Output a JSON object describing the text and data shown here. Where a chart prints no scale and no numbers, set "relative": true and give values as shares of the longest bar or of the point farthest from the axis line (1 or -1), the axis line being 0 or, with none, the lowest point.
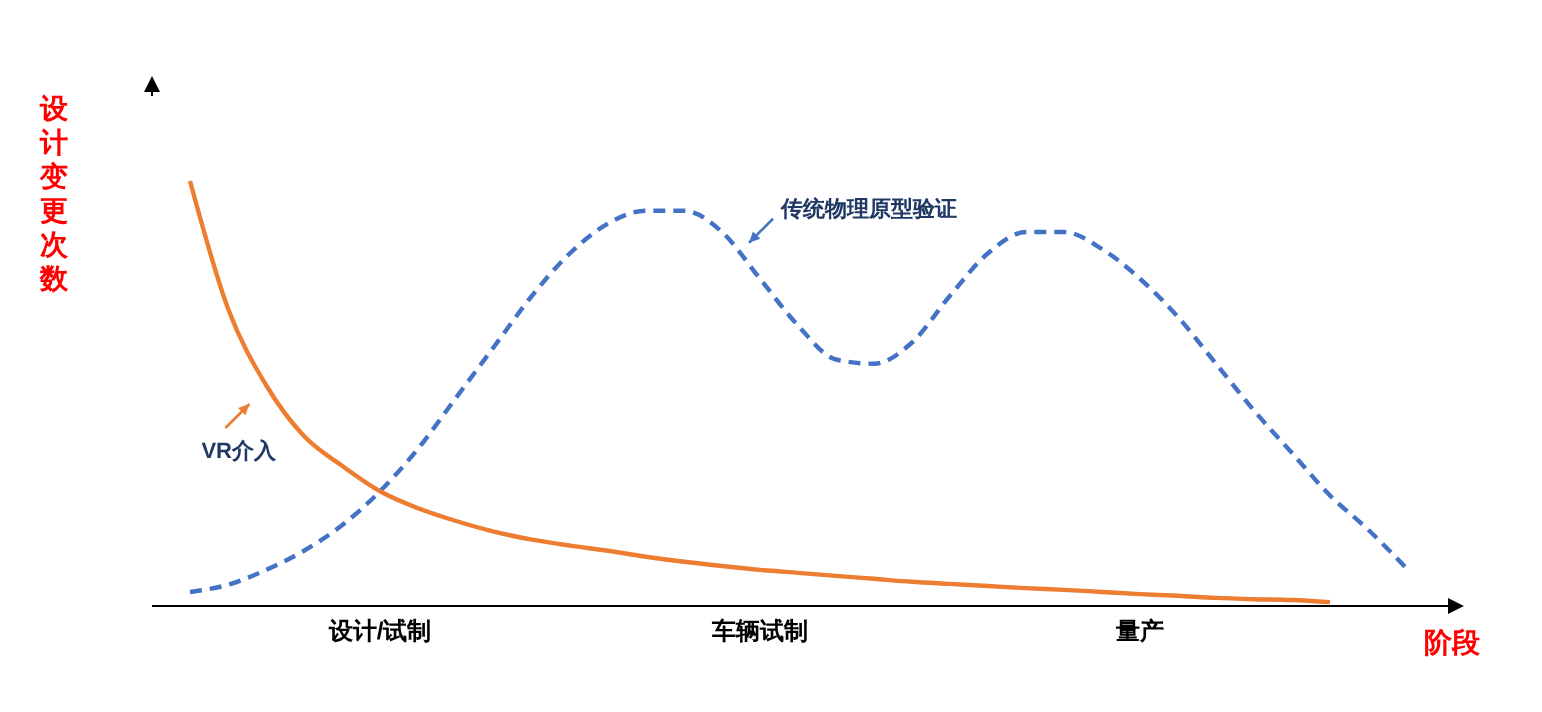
{
  "chart_data": {
    "type": "line",
    "relative": true,
    "xlabel": "阶段",
    "ylabel": "设计变更次数",
    "categories": [
      null,
      null,
      null,
      null,
      null,
      null,
      "设计/试制",
      null,
      null,
      null,
      null,
      null,
      null,
      null,
      null,
      null,
      "车辆试制",
      null,
      null,
      null,
      null,
      null,
      null,
      null,
      null,
      null,
      "量产",
      null,
      null,
      null,
      null,
      null,
      null,
      null,
      null
    ],
    "series": [
      {
        "name": "传统物理原型验证",
        "color": "#4472c4",
        "line_style": "dashed",
        "values": [
          null,
          0.033,
          0.05,
          0.085,
          0.13,
          0.19,
          0.27,
          0.37,
          0.49,
          0.61,
          0.73,
          0.83,
          0.9,
          0.93,
          0.93,
          0.88,
          0.77,
          0.66,
          0.58,
          0.57,
          0.62,
          0.73,
          0.83,
          0.88,
          0.88,
          0.84,
          0.77,
          0.68,
          0.57,
          0.46,
          0.36,
          0.26,
          0.18,
          0.09,
          null
        ]
      },
      {
        "name": "VR介入",
        "color": "#ed7d31",
        "line_style": "solid",
        "values": [
          null,
          1,
          0.7,
          0.52,
          0.4,
          0.33,
          0.27,
          0.23,
          0.2,
          0.175,
          0.156,
          0.142,
          0.13,
          0.116,
          0.104,
          0.094,
          0.085,
          0.078,
          0.071,
          0.064,
          0.057,
          0.052,
          0.047,
          0.042,
          0.038,
          0.033,
          0.028,
          0.024,
          0.019,
          0.016,
          0.014,
          0.009,
          null,
          null,
          null
        ]
      }
    ],
    "marker": "none"
  }
}
